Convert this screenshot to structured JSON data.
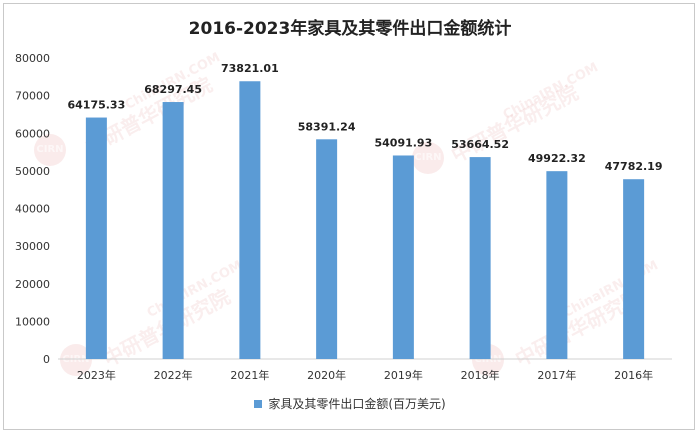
{
  "chart_data": {
    "type": "bar",
    "title": "2016-2023年家具及其零件出口金额统计",
    "categories": [
      "2023年",
      "2022年",
      "2021年",
      "2020年",
      "2019年",
      "2018年",
      "2017年",
      "2016年"
    ],
    "series": [
      {
        "name": "家具及其零件出口金额(百万美元)",
        "values": [
          64175.33,
          68297.45,
          73821.01,
          58391.24,
          54091.93,
          53664.52,
          49922.32,
          47782.19
        ],
        "color": "#5b9bd5"
      }
    ],
    "ylim": [
      0,
      80000
    ],
    "yticks": [
      0,
      10000,
      20000,
      30000,
      40000,
      50000,
      60000,
      70000,
      80000
    ],
    "data_labels": [
      "64175.33",
      "68297.45",
      "73821.01",
      "58391.24",
      "54091.93",
      "53664.52",
      "49922.32",
      "47782.19"
    ],
    "grid": false,
    "legend_position": "bottom"
  },
  "watermark": {
    "text": "中研普华研究院",
    "url": "ChinaIRN.COM",
    "logo": "CIRN"
  }
}
